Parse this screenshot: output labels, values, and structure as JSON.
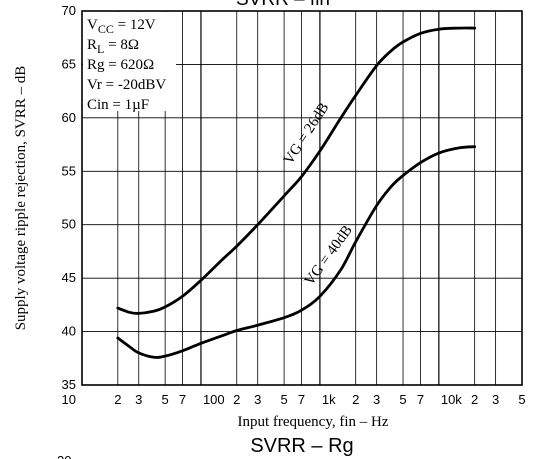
{
  "chart_data": {
    "type": "line",
    "title_top": "SVRR – fin",
    "title_bottom": "SVRR – Rg",
    "bottom_cut_label": "20",
    "xlabel": "Input frequency, fin – Hz",
    "ylabel": "Supply voltage ripple rejection, SVRR – dB",
    "x_scale": "log",
    "xlim": [
      10,
      50000
    ],
    "ylim": [
      35,
      70
    ],
    "grid": true,
    "x_ticks": [
      {
        "v": 10,
        "label": "10"
      },
      {
        "v": 20,
        "label": "2"
      },
      {
        "v": 30,
        "label": "3"
      },
      {
        "v": 50,
        "label": "5"
      },
      {
        "v": 70,
        "label": "7"
      },
      {
        "v": 100,
        "label": "100"
      },
      {
        "v": 200,
        "label": "2"
      },
      {
        "v": 300,
        "label": "3"
      },
      {
        "v": 500,
        "label": "5"
      },
      {
        "v": 700,
        "label": "7"
      },
      {
        "v": 1000,
        "label": "1k"
      },
      {
        "v": 2000,
        "label": "2"
      },
      {
        "v": 3000,
        "label": "3"
      },
      {
        "v": 5000,
        "label": "5"
      },
      {
        "v": 7000,
        "label": "7"
      },
      {
        "v": 10000,
        "label": "10k"
      },
      {
        "v": 20000,
        "label": "2"
      },
      {
        "v": 30000,
        "label": "3"
      },
      {
        "v": 50000,
        "label": "5"
      }
    ],
    "y_ticks": [
      35,
      40,
      45,
      50,
      55,
      60,
      65,
      70
    ],
    "conditions": [
      {
        "main": "V",
        "sub": "CC",
        "rest": " = 12V"
      },
      {
        "main": "R",
        "sub": "L",
        "rest": " = 8Ω"
      },
      {
        "main": "Rg = 620Ω",
        "sub": "",
        "rest": ""
      },
      {
        "main": "Vr = -20dBV",
        "sub": "",
        "rest": ""
      },
      {
        "main": "Cin = 1µF",
        "sub": "",
        "rest": ""
      }
    ],
    "series": [
      {
        "name": "VG = 26dB",
        "x": [
          20,
          25,
          30,
          40,
          50,
          70,
          100,
          150,
          200,
          300,
          500,
          700,
          1000,
          1500,
          2000,
          3000,
          4000,
          5000,
          7000,
          10000,
          15000,
          20000
        ],
        "y": [
          42.2,
          41.8,
          41.7,
          41.9,
          42.3,
          43.3,
          44.8,
          46.7,
          48.0,
          50.0,
          52.7,
          54.5,
          56.9,
          60.0,
          62.1,
          64.9,
          66.3,
          67.1,
          67.9,
          68.3,
          68.4,
          68.4
        ]
      },
      {
        "name": "VG = 40dB",
        "x": [
          20,
          25,
          30,
          40,
          50,
          70,
          100,
          150,
          200,
          300,
          500,
          700,
          1000,
          1500,
          2000,
          3000,
          4000,
          5000,
          7000,
          10000,
          15000,
          20000
        ],
        "y": [
          39.4,
          38.6,
          38.0,
          37.6,
          37.7,
          38.2,
          38.9,
          39.6,
          40.1,
          40.6,
          41.3,
          42.0,
          43.3,
          45.8,
          48.4,
          51.8,
          53.6,
          54.6,
          55.8,
          56.7,
          57.2,
          57.3
        ]
      }
    ]
  }
}
